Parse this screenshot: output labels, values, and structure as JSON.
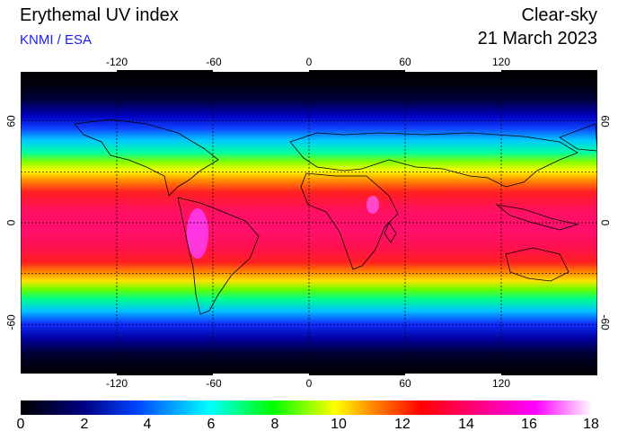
{
  "header": {
    "title": "Erythemal UV index",
    "credit": "KNMI / ESA",
    "mode": "Clear-sky",
    "date": "21 March 2023"
  },
  "map": {
    "longitude_labels": [
      "-120",
      "-60",
      "0",
      "60",
      "120"
    ],
    "latitude_labels": [
      "60",
      "0",
      "-60"
    ],
    "longitude_values": [
      -120,
      -60,
      0,
      60,
      120
    ],
    "latitude_values": [
      60,
      0,
      -60
    ],
    "longitude_range": [
      -180,
      180
    ],
    "latitude_range": [
      -90,
      90
    ],
    "grid": true,
    "grid_style": "dotted"
  },
  "colorbar": {
    "labels": [
      "0",
      "2",
      "4",
      "6",
      "8",
      "10",
      "12",
      "14",
      "16",
      "18"
    ],
    "range": [
      0,
      18
    ],
    "colors": [
      "#000000",
      "#0000ff",
      "#00ffff",
      "#00ff00",
      "#ffff00",
      "#ff8000",
      "#ff0000",
      "#ff0080",
      "#ff00ff",
      "#ffffff"
    ]
  }
}
